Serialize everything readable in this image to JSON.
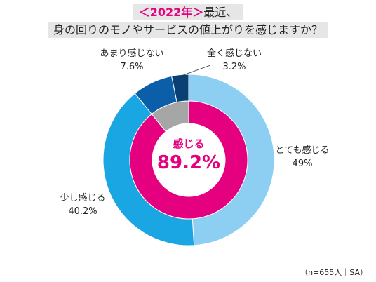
{
  "title": {
    "year_tag": "＜2022年＞",
    "line1_rest": "最近、",
    "line2": "身の回りのモノやサービスの値上がりを感じますか？"
  },
  "note": "（n=655人｜SA）",
  "chart_data": {
    "type": "pie",
    "subtype": "double-donut",
    "outer_ring": {
      "start": "top, clockwise",
      "slices": [
        {
          "label": "とても感じる",
          "value": 49.0,
          "value_label": "49%",
          "color": "#8ccff3"
        },
        {
          "label": "少し感じる",
          "value": 40.2,
          "value_label": "40.2%",
          "color": "#1aa5e3"
        },
        {
          "label": "あまり感じない",
          "value": 7.6,
          "value_label": "7.6%",
          "color": "#0b5ea8"
        },
        {
          "label": "全く感じない",
          "value": 3.2,
          "value_label": "3.2%",
          "color": "#093f73"
        }
      ]
    },
    "inner_ring": {
      "start": "top, clockwise",
      "slices": [
        {
          "label": "感じる",
          "value": 89.2,
          "color": "#e4007f"
        },
        {
          "label": "",
          "value": 10.8,
          "color": "#a6a6a6"
        }
      ]
    },
    "center_label": "感じる",
    "center_value": "89.2%",
    "center_color": "#e4007f"
  }
}
